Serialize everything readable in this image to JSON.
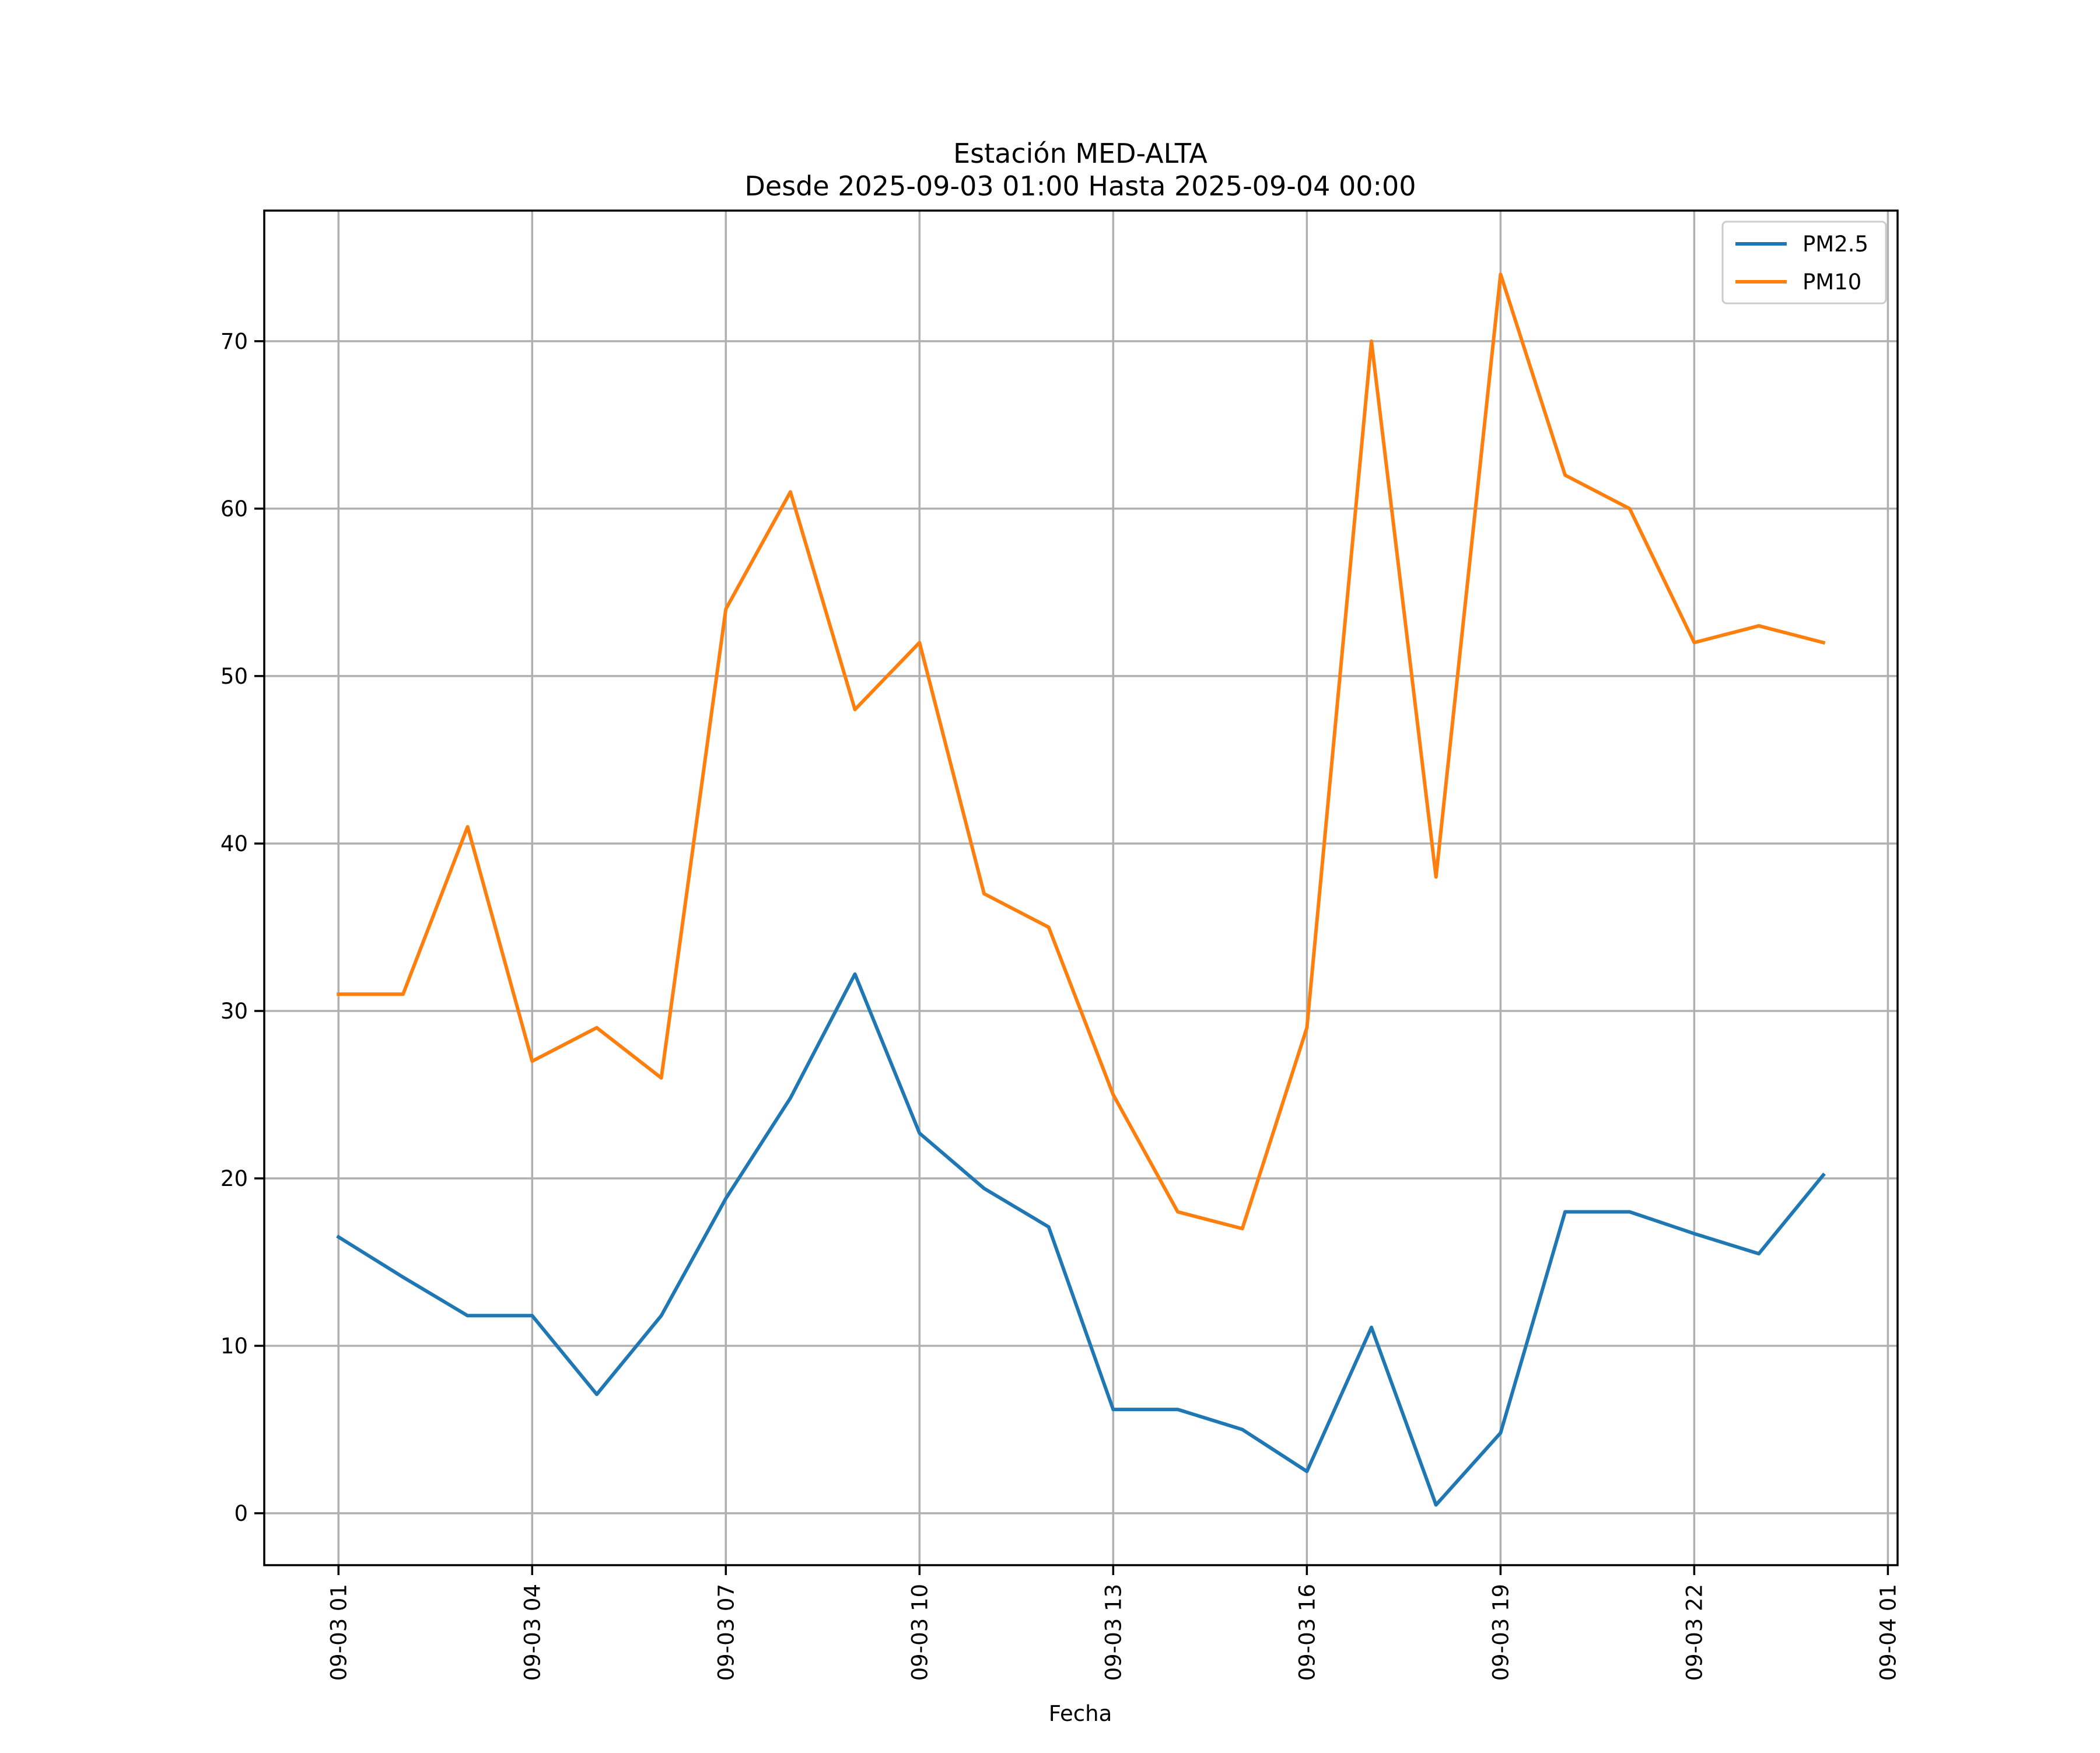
{
  "chart_data": {
    "type": "line",
    "title": "Estación MED-ALTA",
    "subtitle": "Desde 2025-09-03 01:00 Hasta 2025-09-04 00:00",
    "xlabel": "Fecha",
    "ylabel": "",
    "grid": true,
    "legend_position": "top-right",
    "x": [
      "09-03 01:00",
      "09-03 02:00",
      "09-03 03:00",
      "09-03 04:00",
      "09-03 05:00",
      "09-03 06:00",
      "09-03 07:00",
      "09-03 08:00",
      "09-03 09:00",
      "09-03 10:00",
      "09-03 11:00",
      "09-03 12:00",
      "09-03 13:00",
      "09-03 14:00",
      "09-03 15:00",
      "09-03 16:00",
      "09-03 17:00",
      "09-03 18:00",
      "09-03 19:00",
      "09-03 20:00",
      "09-03 21:00",
      "09-03 22:00",
      "09-03 23:00",
      "09-04 00:00"
    ],
    "x_hours_from_start": [
      0,
      1,
      2,
      3,
      4,
      5,
      6,
      7,
      8,
      9,
      10,
      11,
      12,
      13,
      14,
      15,
      16,
      17,
      18,
      19,
      20,
      21,
      22,
      23
    ],
    "xlim": [
      -1.15,
      24.15
    ],
    "ylim": [
      -3.1,
      77.8
    ],
    "x_ticks": [
      {
        "hour": 0,
        "label": "09-03 01"
      },
      {
        "hour": 3,
        "label": "09-03 04"
      },
      {
        "hour": 6,
        "label": "09-03 07"
      },
      {
        "hour": 9,
        "label": "09-03 10"
      },
      {
        "hour": 12,
        "label": "09-03 13"
      },
      {
        "hour": 15,
        "label": "09-03 16"
      },
      {
        "hour": 18,
        "label": "09-03 19"
      },
      {
        "hour": 21,
        "label": "09-03 22"
      },
      {
        "hour": 24,
        "label": "09-04 01"
      }
    ],
    "y_ticks": [
      0,
      10,
      20,
      30,
      40,
      50,
      60,
      70
    ],
    "series": [
      {
        "name": "PM2.5",
        "color": "#1f77b4",
        "values": [
          16.5,
          14.1,
          11.8,
          11.8,
          7.1,
          11.8,
          18.8,
          24.8,
          32.2,
          22.7,
          19.4,
          17.1,
          6.2,
          6.2,
          5.0,
          2.5,
          11.1,
          0.5,
          4.8,
          18.0,
          18.0,
          16.7,
          15.5,
          20.2
        ]
      },
      {
        "name": "PM10",
        "color": "#ff7f0e",
        "values": [
          31,
          31,
          41,
          27,
          29,
          26,
          54,
          61,
          48,
          52,
          37,
          35,
          25,
          18,
          17,
          29,
          70,
          38,
          74,
          62,
          60,
          52,
          53,
          52
        ]
      }
    ]
  }
}
